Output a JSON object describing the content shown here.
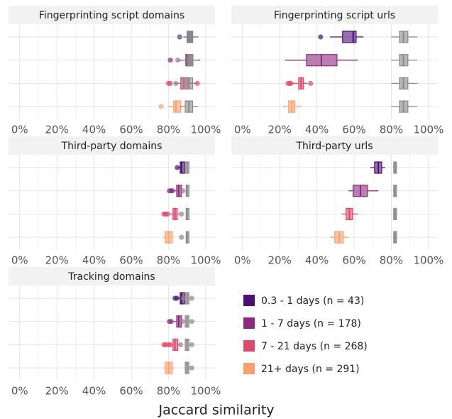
{
  "x_label": "Jaccard similarity",
  "reference_color": "#8a8a8a",
  "legend": [
    {
      "name": "0.3 - 1 days (n = 43)",
      "color": "#4b1078"
    },
    {
      "name": "1 - 7 days (n = 178)",
      "color": "#8c2981"
    },
    {
      "name": "7 - 21 days (n = 268)",
      "color": "#de4968"
    },
    {
      "name": "21+ days (n = 291)",
      "color": "#fe9f6d"
    }
  ],
  "chart_data": [
    {
      "type": "boxplot",
      "title": "Fingerprinting script domains",
      "xlim": [
        -6,
        105
      ],
      "xticks": [
        {
          "value": 0,
          "label": "0%"
        },
        {
          "value": 20,
          "label": "20%"
        },
        {
          "value": 40,
          "label": "40%"
        },
        {
          "value": 60,
          "label": "60%"
        },
        {
          "value": 80,
          "label": "80%"
        },
        {
          "value": 100,
          "label": "100%"
        }
      ],
      "rows": [
        {
          "box": [
            88,
            90,
            92,
            93,
            96
          ],
          "outliers": [
            86
          ],
          "ref_box": [
            88,
            90,
            92,
            93,
            96
          ],
          "ref_outliers": [
            86
          ]
        },
        {
          "box": [
            85,
            89.3,
            90,
            93.1,
            97
          ],
          "outliers": [
            81
          ],
          "ref_box": [
            87,
            90,
            91,
            93,
            96
          ],
          "ref_outliers": [
            85
          ]
        },
        {
          "box": [
            83,
            86.6,
            88,
            91.2,
            95
          ],
          "outliers": [
            80,
            81,
            95.5
          ],
          "ref_box": [
            85,
            88,
            91,
            93,
            95
          ],
          "ref_outliers": [
            84
          ]
        },
        {
          "box": [
            80,
            82.8,
            84,
            86.6,
            88
          ],
          "outliers": [
            76
          ],
          "ref_box": [
            86,
            89,
            91,
            93,
            96
          ],
          "ref_outliers": []
        }
      ]
    },
    {
      "type": "boxplot",
      "title": "Fingerprinting script urls",
      "xlim": [
        -6,
        105
      ],
      "xticks": [
        {
          "value": 0,
          "label": "0%"
        },
        {
          "value": 20,
          "label": "20%"
        },
        {
          "value": 40,
          "label": "40%"
        },
        {
          "value": 60,
          "label": "60%"
        },
        {
          "value": 80,
          "label": "80%"
        },
        {
          "value": 100,
          "label": "100%"
        }
      ],
      "rows": [
        {
          "box": [
            47,
            53.8,
            59.5,
            61.1,
            65
          ],
          "outliers": [
            42
          ],
          "ref_box": [
            80,
            84.4,
            86.5,
            88.9,
            94
          ],
          "ref_outliers": []
        },
        {
          "box": [
            23,
            34.4,
            42.4,
            50.8,
            62
          ],
          "outliers": [],
          "ref_box": [
            80,
            84.4,
            86.5,
            88.9,
            94
          ],
          "ref_outliers": []
        },
        {
          "box": [
            27,
            30.2,
            31.5,
            32.8,
            35
          ],
          "outliers": [
            24.5,
            25.5,
            26,
            36.6
          ],
          "ref_box": [
            80,
            84.4,
            86.5,
            88.9,
            94
          ],
          "ref_outliers": []
        },
        {
          "box": [
            21.8,
            24.8,
            26.5,
            28.2,
            31.7
          ],
          "outliers": [],
          "ref_box": [
            80,
            84.4,
            86.5,
            88.9,
            94
          ],
          "ref_outliers": []
        }
      ]
    },
    {
      "type": "boxplot",
      "title": "Third-party domains",
      "xlim": [
        -6,
        105
      ],
      "xticks": [
        {
          "value": 0,
          "label": "0%"
        },
        {
          "value": 20,
          "label": "20%"
        },
        {
          "value": 40,
          "label": "40%"
        },
        {
          "value": 60,
          "label": "60%"
        },
        {
          "value": 80,
          "label": "80%"
        },
        {
          "value": 100,
          "label": "100%"
        }
      ],
      "rows": [
        {
          "box": [
            85,
            86.3,
            87,
            88.5,
            88.5
          ],
          "outliers": [
            84.7
          ],
          "ref_box": [
            89,
            89,
            90,
            91,
            91
          ],
          "ref_outliers": []
        },
        {
          "box": [
            83,
            84.4,
            85.5,
            87,
            87.5
          ],
          "outliers": [
            80.5,
            81.5,
            82
          ],
          "ref_box": [
            89.5,
            89.5,
            90,
            91,
            91
          ],
          "ref_outliers": [
            87.8
          ]
        },
        {
          "box": [
            80,
            82.4,
            83.5,
            84.7,
            86
          ],
          "outliers": [
            77.5,
            78.5,
            79.5
          ],
          "ref_box": [
            89.5,
            89.5,
            90,
            91,
            91
          ],
          "ref_outliers": [
            87
          ]
        },
        {
          "box": [
            77,
            78.2,
            80,
            82,
            83
          ],
          "outliers": [],
          "ref_box": [
            89.5,
            89.5,
            90,
            91,
            91
          ],
          "ref_outliers": [
            87
          ]
        }
      ]
    },
    {
      "type": "boxplot",
      "title": "Third-party urls",
      "xlim": [
        -6,
        105
      ],
      "xticks": [
        {
          "value": 0,
          "label": "0%"
        },
        {
          "value": 20,
          "label": "20%"
        },
        {
          "value": 40,
          "label": "40%"
        },
        {
          "value": 60,
          "label": "60%"
        },
        {
          "value": 80,
          "label": "80%"
        },
        {
          "value": 100,
          "label": "100%"
        }
      ],
      "rows": [
        {
          "box": [
            68.7,
            71,
            73,
            74.8,
            76.7
          ],
          "outliers": [],
          "ref_box": [
            81,
            81.3,
            82,
            82.8,
            83
          ],
          "ref_outliers": []
        },
        {
          "box": [
            57,
            59.5,
            63.4,
            67.2,
            73
          ],
          "outliers": [],
          "ref_box": [
            81,
            81.3,
            82,
            82.8,
            83
          ],
          "ref_outliers": []
        },
        {
          "box": [
            53.4,
            55.7,
            57.5,
            59.2,
            62.2
          ],
          "outliers": [],
          "ref_box": [
            81,
            81.3,
            82,
            82.8,
            83
          ],
          "ref_outliers": []
        },
        {
          "box": [
            47,
            49.6,
            52,
            54.2,
            56.9
          ],
          "outliers": [],
          "ref_box": [
            81,
            81.3,
            82,
            82.8,
            83
          ],
          "ref_outliers": []
        }
      ]
    },
    {
      "type": "boxplot",
      "title": "Tracking domains",
      "xlim": [
        -6,
        105
      ],
      "xticks": [
        {
          "value": 0,
          "label": "0%"
        },
        {
          "value": 20,
          "label": "20%"
        },
        {
          "value": 40,
          "label": "40%"
        },
        {
          "value": 60,
          "label": "60%"
        },
        {
          "value": 80,
          "label": "80%"
        },
        {
          "value": 100,
          "label": "100%"
        }
      ],
      "rows": [
        {
          "box": [
            85,
            86.3,
            87,
            88.5,
            89
          ],
          "outliers": [
            83.5,
            84.5
          ],
          "ref_box": [
            89,
            89,
            90,
            91,
            91
          ],
          "ref_outliers": [
            88,
            92.5
          ]
        },
        {
          "box": [
            83,
            84.4,
            85.5,
            87,
            87.5
          ],
          "outliers": [
            80.5,
            81.5
          ],
          "ref_box": [
            89,
            89,
            90,
            91,
            91
          ],
          "ref_outliers": [
            87.5,
            92.5
          ]
        },
        {
          "box": [
            82,
            82.4,
            83.5,
            85,
            86
          ],
          "outliers": [
            77.5,
            78.5,
            80,
            81
          ],
          "ref_box": [
            89,
            89,
            90,
            91,
            91
          ],
          "ref_outliers": [
            86.5,
            92.5
          ]
        },
        {
          "box": [
            77,
            78.2,
            80,
            82,
            83
          ],
          "outliers": [],
          "ref_box": [
            89,
            89,
            90,
            91,
            91
          ],
          "ref_outliers": [
            92.5
          ]
        }
      ]
    }
  ]
}
